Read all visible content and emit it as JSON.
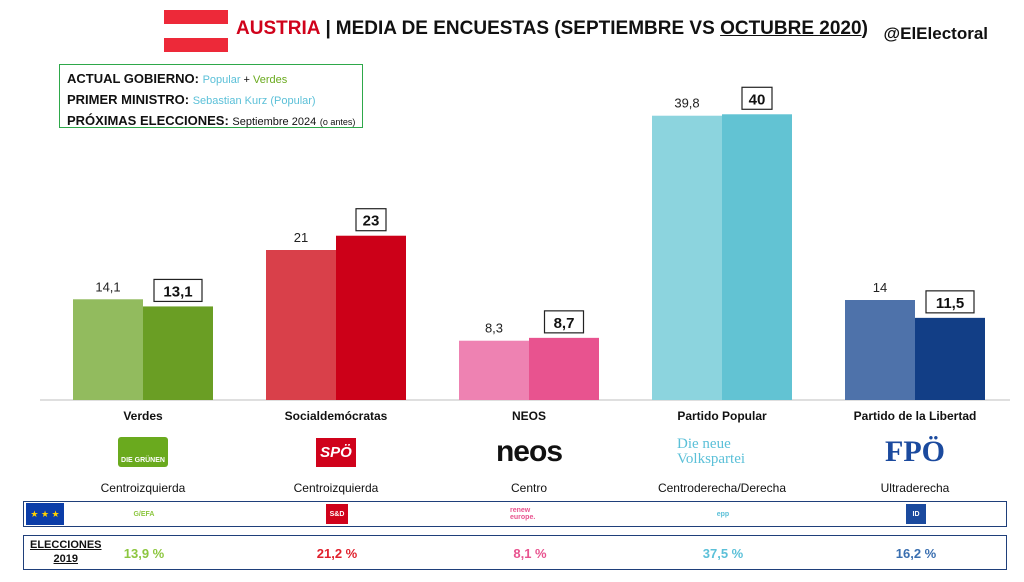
{
  "header": {
    "country": "AUSTRIA",
    "separator": "|",
    "title_main": "MEDIA DE ENCUESTAS (SEPTIEMBRE VS ",
    "title_underlined": "OCTUBRE 2020",
    "title_end": ")",
    "handle": "@ElElectoral",
    "flag_colors": [
      "#ed2939",
      "#ffffff",
      "#ed2939"
    ]
  },
  "info": {
    "gov_label": "ACTUAL GOBIERNO:",
    "gov_party1": "Popular",
    "gov_plus": " + ",
    "gov_party2": "Verdes",
    "pm_label": "PRIMER MINISTRO:",
    "pm_value": "Sebastian Kurz (Popular)",
    "next_label": "PRÓXIMAS ELECCIONES:",
    "next_value": "Septiembre 2024",
    "next_note": "(o antes)"
  },
  "chart_data": {
    "type": "bar",
    "categories": [
      "Verdes",
      "Socialdemócratas",
      "NEOS",
      "Partido Popular",
      "Partido de la Libertad"
    ],
    "series": [
      {
        "values": [
          14.1,
          21,
          8.3,
          39.8,
          14
        ]
      },
      {
        "values": [
          13.1,
          23,
          8.7,
          40,
          11.5
        ]
      }
    ],
    "labels_sep": [
      "14,1",
      "21",
      "8,3",
      "39,8",
      "14"
    ],
    "labels_oct": [
      "13,1",
      "23",
      "8,7",
      "40",
      "11,5"
    ],
    "colors_sep": [
      "#92bb5e",
      "#d9404a",
      "#ee82b2",
      "#8cd4de",
      "#4e72aa"
    ],
    "colors_oct": [
      "#6a9e24",
      "#cc0018",
      "#e8538f",
      "#62c3d3",
      "#123e86"
    ],
    "ylim": [
      0,
      45
    ],
    "grid": false,
    "legend": "none"
  },
  "parties": [
    {
      "name": "Verdes",
      "ideology": "Centroizquierda",
      "logo_text": "DIE GRÜNEN",
      "logo_color": "#6aaa1e",
      "eu_group": "G/EFA",
      "result_2019": "13,9 %",
      "result_color": "#8cc63f"
    },
    {
      "name": "Socialdemócratas",
      "ideology": "Centroizquierda",
      "logo_text": "SPÖ",
      "logo_color": "#d0021b",
      "eu_group": "S&D",
      "result_2019": "21,2 %",
      "result_color": "#e0202c"
    },
    {
      "name": "NEOS",
      "ideology": "Centro",
      "logo_text": "neos",
      "logo_color": "#e8458b",
      "eu_group": "renew europe.",
      "result_2019": "8,1 %",
      "result_color": "#e8538f"
    },
    {
      "name": "Partido Popular",
      "ideology": "Centroderecha/Derecha",
      "logo_text": "Die neue Volkspartei",
      "logo_color": "#5bc0d8",
      "eu_group": "epp",
      "result_2019": "37,5 %",
      "result_color": "#5bc0d8"
    },
    {
      "name": "Partido de la Libertad",
      "ideology": "Ultraderecha",
      "logo_text": "FPÖ",
      "logo_color": "#1b4a9e",
      "eu_group": "ID",
      "result_2019": "16,2 %",
      "result_color": "#3a6fb0"
    }
  ],
  "results": {
    "label_line1": "ELECCIONES",
    "label_line2": "2019"
  }
}
